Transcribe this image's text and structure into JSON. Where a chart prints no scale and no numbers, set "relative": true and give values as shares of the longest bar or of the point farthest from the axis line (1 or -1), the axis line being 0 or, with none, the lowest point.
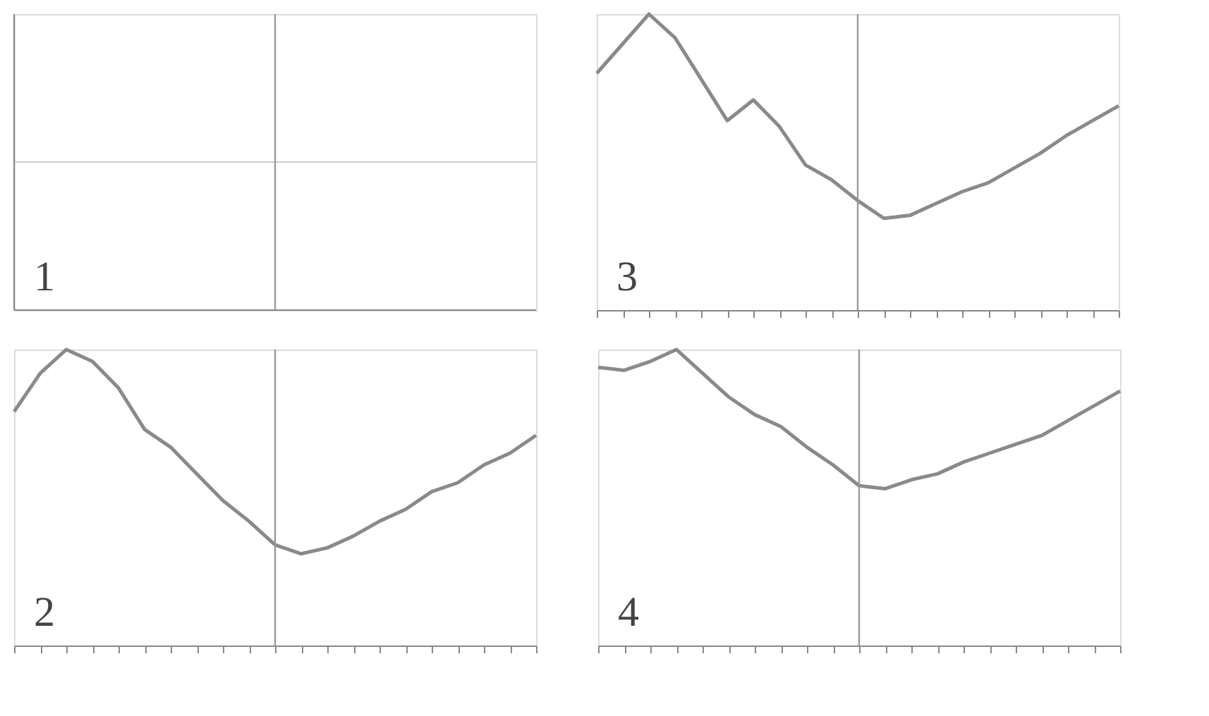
{
  "chart_data": [
    {
      "type": "other",
      "annotations": [
        "1"
      ]
    },
    {
      "type": "line",
      "relative": true,
      "tick_labels": false,
      "grid": false,
      "marker": "none",
      "line_style": "solid",
      "annotations": [
        "3"
      ],
      "categories": [
        null,
        null,
        null,
        null,
        null,
        null,
        null,
        null,
        null,
        null,
        null,
        null,
        null,
        null,
        null,
        null,
        null,
        null,
        null,
        null,
        null
      ],
      "series": [
        {
          "color": "#8a8a8a",
          "values": [
            0.8,
            0.9,
            1.0,
            0.92,
            0.78,
            0.64,
            0.71,
            0.62,
            0.49,
            0.44,
            0.37,
            0.31,
            0.32,
            0.36,
            0.4,
            0.43,
            0.48,
            0.53,
            0.59,
            0.64,
            0.69
          ]
        }
      ]
    },
    {
      "type": "line",
      "relative": true,
      "tick_labels": false,
      "grid": false,
      "marker": "none",
      "line_style": "solid",
      "annotations": [
        "2"
      ],
      "categories": [
        null,
        null,
        null,
        null,
        null,
        null,
        null,
        null,
        null,
        null,
        null,
        null,
        null,
        null,
        null,
        null,
        null,
        null,
        null,
        null,
        null
      ],
      "series": [
        {
          "color": "#8a8a8a",
          "values": [
            0.79,
            0.92,
            1.0,
            0.96,
            0.87,
            0.73,
            0.67,
            0.58,
            0.49,
            0.42,
            0.34,
            0.31,
            0.33,
            0.37,
            0.42,
            0.46,
            0.52,
            0.55,
            0.61,
            0.65,
            0.71
          ]
        }
      ]
    },
    {
      "type": "line",
      "relative": true,
      "tick_labels": false,
      "grid": false,
      "marker": "none",
      "line_style": "solid",
      "annotations": [
        "4"
      ],
      "categories": [
        null,
        null,
        null,
        null,
        null,
        null,
        null,
        null,
        null,
        null,
        null,
        null,
        null,
        null,
        null,
        null,
        null,
        null,
        null,
        null,
        null
      ],
      "series": [
        {
          "color": "#8a8a8a",
          "values": [
            0.94,
            0.93,
            0.96,
            1.0,
            0.92,
            0.84,
            0.78,
            0.74,
            0.67,
            0.61,
            0.54,
            0.53,
            0.56,
            0.58,
            0.62,
            0.65,
            0.68,
            0.71,
            0.76,
            0.81,
            0.86
          ]
        }
      ]
    }
  ]
}
